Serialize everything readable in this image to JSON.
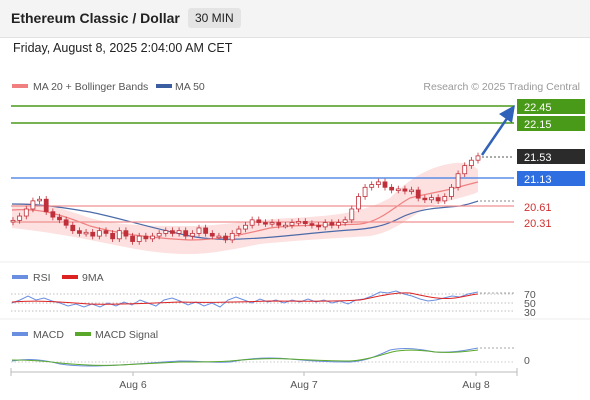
{
  "header": {
    "title": "Ethereum Classic / Dollar",
    "timeframe": "30 MIN"
  },
  "datetime": "Friday, August 8, 2025 2:04:00 AM CET",
  "credit": "Research © 2025 Trading Central",
  "colors": {
    "candle": "#c0303a",
    "bollinger_fill": "#fde0e0",
    "ma20": "#f08080",
    "ma50": "#4a6aa8",
    "green_line": "#4a9a1a",
    "blue_line": "#5b8de8",
    "red_line": "#f09090",
    "rsi": "#6a8ee0",
    "rsi_ma": "#dd2222",
    "macd": "#6a8ee0",
    "macd_signal": "#5aa82a"
  },
  "chart_data": [
    {
      "type": "candlestick",
      "legend": [
        {
          "name": "MA 20 + Bollinger Bands",
          "color": "#f08080"
        },
        {
          "name": "MA 50",
          "color": "#3b5ea0"
        }
      ],
      "x_ticks": [
        "Aug 6",
        "Aug 7",
        "Aug 8"
      ],
      "ylim": [
        19.75,
        22.65
      ],
      "levels": [
        {
          "label": "22.45",
          "value": 22.45,
          "style": "green",
          "tag": "filled"
        },
        {
          "label": "22.15",
          "value": 22.15,
          "style": "green",
          "tag": "filled"
        },
        {
          "label": "21.53",
          "value": 21.53,
          "style": "current",
          "tag": "dark"
        },
        {
          "label": "21.13",
          "value": 21.13,
          "style": "blue",
          "tag": "filled"
        },
        {
          "label": "20.61",
          "value": 20.61,
          "style": "red",
          "tag": "text"
        },
        {
          "label": "20.31",
          "value": 20.31,
          "style": "red",
          "tag": "text"
        }
      ],
      "close_series": [
        20.34,
        20.42,
        20.55,
        20.7,
        20.73,
        20.5,
        20.4,
        20.35,
        20.25,
        20.15,
        20.1,
        20.12,
        20.05,
        20.15,
        20.1,
        20.0,
        20.15,
        20.05,
        19.95,
        20.05,
        20.0,
        20.05,
        20.1,
        20.15,
        20.1,
        20.15,
        20.05,
        20.1,
        20.2,
        20.1,
        20.05,
        20.05,
        19.98,
        20.1,
        20.18,
        20.25,
        20.35,
        20.3,
        20.28,
        20.3,
        20.25,
        20.25,
        20.3,
        20.32,
        20.28,
        20.25,
        20.22,
        20.3,
        20.25,
        20.3,
        20.35,
        20.55,
        20.78,
        20.95,
        21.0,
        21.05,
        20.95,
        20.9,
        20.92,
        20.88,
        20.9,
        20.75,
        20.72,
        20.76,
        20.7,
        20.78,
        20.95,
        21.2,
        21.35,
        21.45,
        21.53
      ]
    },
    {
      "type": "line",
      "legend": [
        {
          "name": "RSI",
          "color": "#6a8ee0"
        },
        {
          "name": "9MA",
          "color": "#dd2222"
        }
      ],
      "y_ticks": [
        "70",
        "50",
        "30"
      ]
    },
    {
      "type": "line",
      "legend": [
        {
          "name": "MACD",
          "color": "#6a8ee0"
        },
        {
          "name": "MACD Signal",
          "color": "#5aa82a"
        }
      ],
      "y_ticks": [
        "0"
      ]
    }
  ]
}
